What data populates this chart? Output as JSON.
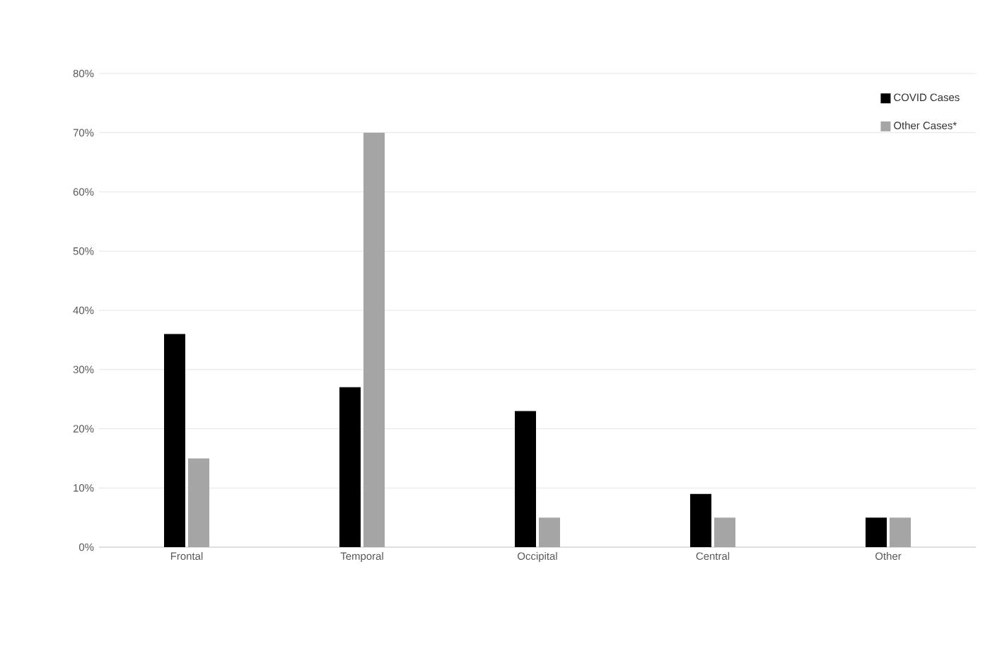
{
  "chart_data": {
    "type": "bar",
    "categories": [
      "Frontal",
      "Temporal",
      "Occipital",
      "Central",
      "Other"
    ],
    "series": [
      {
        "name": "COVID Cases",
        "color": "#000000",
        "values": [
          36,
          27,
          23,
          9,
          5
        ]
      },
      {
        "name": "Other Cases*",
        "color": "#a5a5a5",
        "values": [
          15,
          70,
          5,
          5,
          5
        ]
      }
    ],
    "ylim": [
      0,
      80
    ],
    "yticks": [
      {
        "value": 0,
        "label": "0%"
      },
      {
        "value": 10,
        "label": "10%"
      },
      {
        "value": 20,
        "label": "20%"
      },
      {
        "value": 30,
        "label": "30%"
      },
      {
        "value": 40,
        "label": "40%"
      },
      {
        "value": 50,
        "label": "50%"
      },
      {
        "value": 60,
        "label": "60%"
      },
      {
        "value": 70,
        "label": "70%"
      },
      {
        "value": 80,
        "label": "80%"
      }
    ],
    "grid": "y",
    "legend": "top right"
  }
}
